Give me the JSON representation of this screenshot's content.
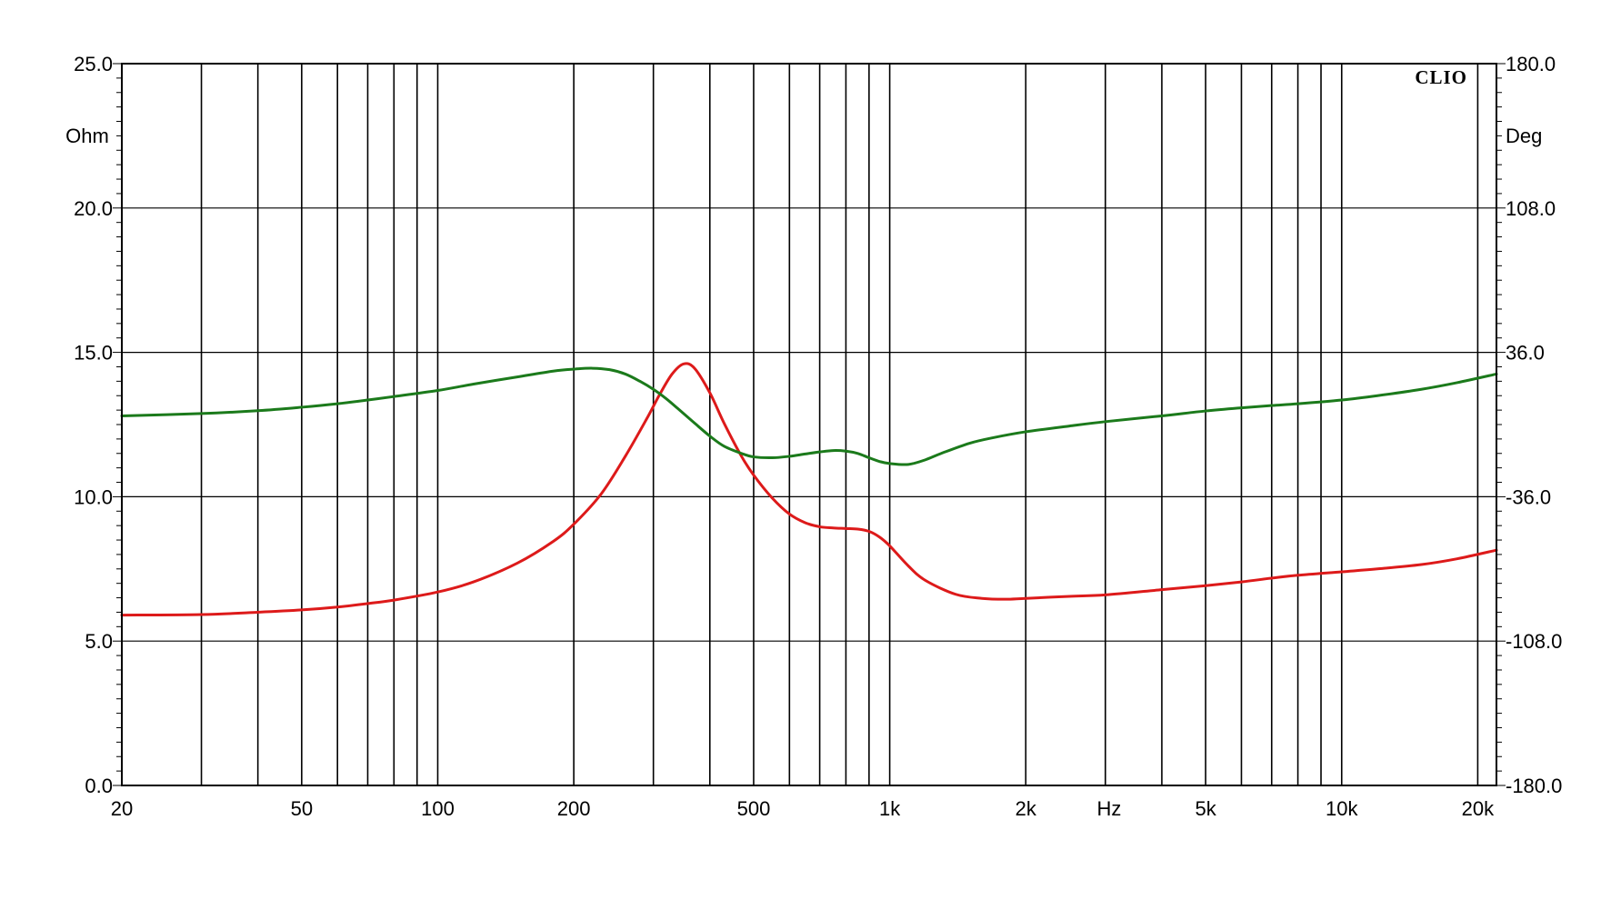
{
  "chart_data": {
    "type": "line",
    "title": "",
    "brand": "CLIO",
    "xlabel": "Hz",
    "x_scale": "log",
    "xlim": [
      20,
      22000
    ],
    "x_ticks": [
      20,
      50,
      100,
      200,
      500,
      1000,
      2000,
      5000,
      10000,
      20000
    ],
    "x_tick_labels": [
      "20",
      "50",
      "100",
      "200",
      "500",
      "1k",
      "2k",
      "5k",
      "10k",
      "20k"
    ],
    "y_left": {
      "label": "Ohm",
      "lim": [
        0,
        25
      ],
      "ticks": [
        0,
        5,
        10,
        15,
        20,
        25
      ],
      "tick_labels": [
        "0.0",
        "5.0",
        "10.0",
        "15.0",
        "20.0",
        "25.0"
      ]
    },
    "y_right": {
      "label": "Deg",
      "lim": [
        -180,
        180
      ],
      "ticks": [
        -180,
        -108,
        -36,
        36,
        108,
        180
      ],
      "tick_labels": [
        "-180.0",
        "-108.0",
        "-36.0",
        "36.0",
        "108.0",
        "180.0"
      ]
    },
    "grid": true,
    "series": [
      {
        "axis": "left",
        "color": "#dd1a1a",
        "x": [
          20,
          30,
          40,
          50,
          60,
          70,
          80,
          100,
          120,
          150,
          180,
          200,
          230,
          260,
          290,
          310,
          330,
          350,
          370,
          400,
          430,
          470,
          500,
          550,
          600,
          650,
          700,
          750,
          800,
          850,
          900,
          950,
          1000,
          1100,
          1200,
          1400,
          1600,
          1800,
          2000,
          2500,
          3000,
          4000,
          5000,
          6000,
          7000,
          8000,
          10000,
          12000,
          15000,
          18000,
          22000
        ],
        "values": [
          5.9,
          5.92,
          6.0,
          6.08,
          6.18,
          6.3,
          6.42,
          6.7,
          7.05,
          7.7,
          8.45,
          9.05,
          10.1,
          11.4,
          12.7,
          13.55,
          14.25,
          14.6,
          14.45,
          13.6,
          12.55,
          11.4,
          10.75,
          9.95,
          9.4,
          9.1,
          8.96,
          8.92,
          8.9,
          8.88,
          8.8,
          8.6,
          8.3,
          7.6,
          7.1,
          6.62,
          6.48,
          6.45,
          6.48,
          6.55,
          6.6,
          6.78,
          6.92,
          7.05,
          7.18,
          7.28,
          7.4,
          7.5,
          7.65,
          7.85,
          8.15
        ]
      },
      {
        "axis": "left",
        "color": "#1b7a1b",
        "x": [
          20,
          30,
          40,
          50,
          60,
          70,
          80,
          100,
          120,
          150,
          180,
          200,
          220,
          240,
          260,
          280,
          300,
          320,
          340,
          370,
          400,
          430,
          470,
          500,
          550,
          600,
          650,
          700,
          750,
          800,
          850,
          900,
          950,
          1000,
          1100,
          1200,
          1300,
          1500,
          1700,
          2000,
          2500,
          3000,
          4000,
          5000,
          6000,
          7000,
          8000,
          10000,
          12000,
          15000,
          18000,
          22000
        ],
        "values": [
          12.8,
          12.88,
          12.98,
          13.1,
          13.22,
          13.35,
          13.47,
          13.68,
          13.9,
          14.15,
          14.35,
          14.42,
          14.45,
          14.4,
          14.25,
          14.0,
          13.72,
          13.4,
          13.05,
          12.55,
          12.1,
          11.75,
          11.5,
          11.38,
          11.35,
          11.4,
          11.48,
          11.55,
          11.6,
          11.58,
          11.5,
          11.35,
          11.22,
          11.15,
          11.12,
          11.28,
          11.5,
          11.85,
          12.05,
          12.25,
          12.45,
          12.6,
          12.8,
          12.97,
          13.08,
          13.16,
          13.22,
          13.35,
          13.5,
          13.72,
          13.95,
          14.25
        ]
      }
    ]
  }
}
